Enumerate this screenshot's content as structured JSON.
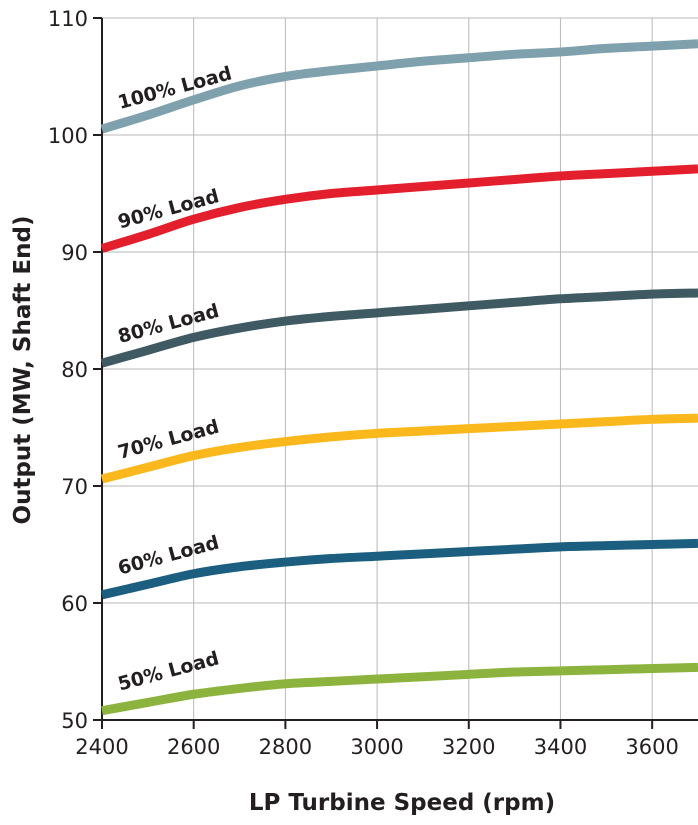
{
  "chart_data": {
    "type": "line",
    "xlabel": "LP Turbine Speed (rpm)",
    "ylabel": "Output (MW, Shaft End)",
    "xlim": [
      2400,
      3700
    ],
    "ylim": [
      50,
      110
    ],
    "x_ticks": [
      "2400",
      "2600",
      "2800",
      "3000",
      "3200",
      "3400",
      "3600"
    ],
    "y_ticks": [
      "50",
      "60",
      "70",
      "80",
      "90",
      "100",
      "110"
    ],
    "grid": true,
    "x": [
      2400,
      2500,
      2600,
      2700,
      2800,
      2900,
      3000,
      3100,
      3200,
      3300,
      3400,
      3500,
      3600,
      3700
    ],
    "series": [
      {
        "name": "100% Load",
        "color": "#7fa0ad",
        "values": [
          100.5,
          101.7,
          103.0,
          104.2,
          105.0,
          105.5,
          105.9,
          106.3,
          106.6,
          106.9,
          107.1,
          107.4,
          107.6,
          107.8
        ]
      },
      {
        "name": "90% Load",
        "color": "#e41f2d",
        "values": [
          90.3,
          91.5,
          92.8,
          93.8,
          94.5,
          95.0,
          95.3,
          95.6,
          95.9,
          96.2,
          96.5,
          96.7,
          96.9,
          97.1
        ]
      },
      {
        "name": "80% Load",
        "color": "#3f5a63",
        "values": [
          80.5,
          81.6,
          82.7,
          83.5,
          84.1,
          84.5,
          84.8,
          85.1,
          85.4,
          85.7,
          86.0,
          86.2,
          86.4,
          86.5
        ]
      },
      {
        "name": "70% Load",
        "color": "#fbb81c",
        "values": [
          70.6,
          71.6,
          72.6,
          73.3,
          73.8,
          74.2,
          74.5,
          74.7,
          74.9,
          75.1,
          75.3,
          75.5,
          75.7,
          75.8
        ]
      },
      {
        "name": "60% Load",
        "color": "#1b5e80",
        "values": [
          60.7,
          61.6,
          62.5,
          63.1,
          63.5,
          63.8,
          64.0,
          64.2,
          64.4,
          64.6,
          64.8,
          64.9,
          65.0,
          65.1
        ]
      },
      {
        "name": "50% Load",
        "color": "#8db33f",
        "values": [
          50.8,
          51.5,
          52.2,
          52.7,
          53.1,
          53.3,
          53.5,
          53.7,
          53.9,
          54.1,
          54.2,
          54.3,
          54.4,
          54.5
        ]
      }
    ]
  }
}
